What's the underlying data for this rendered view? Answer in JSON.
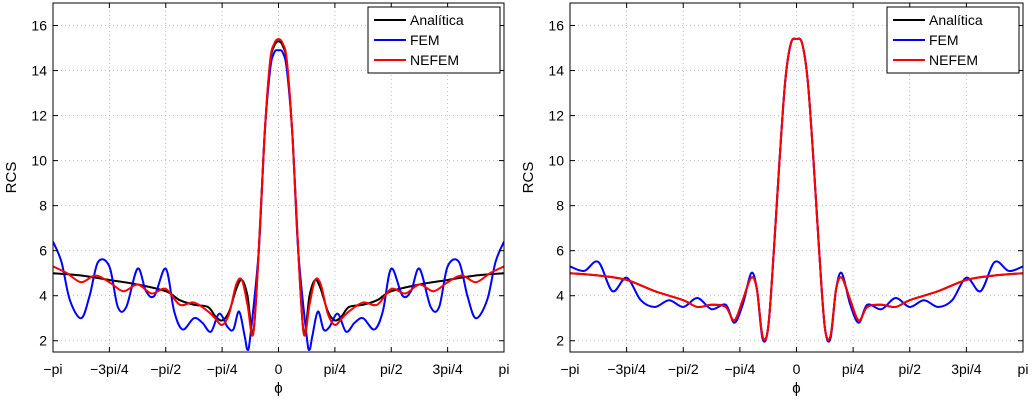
{
  "chart_data": [
    {
      "type": "line",
      "xlabel": "ϕ",
      "ylabel": "RCS",
      "xlim": [
        -3.1416,
        3.1416
      ],
      "ylim": [
        1.5,
        17
      ],
      "grid": true,
      "legend_position": "top-right",
      "xticks": [
        -3.1416,
        -2.3562,
        -1.5708,
        -0.7854,
        0,
        0.7854,
        1.5708,
        2.3562,
        3.1416
      ],
      "xtick_labels": [
        "−pi",
        "−3pi/4",
        "−pi/2",
        "−pi/4",
        "0",
        "pi/4",
        "pi/2",
        "3pi/4",
        "pi"
      ],
      "yticks": [
        2,
        4,
        6,
        8,
        10,
        12,
        14,
        16
      ],
      "ytick_labels": [
        "2",
        "4",
        "6",
        "8",
        "10",
        "12",
        "14",
        "16"
      ],
      "series": [
        {
          "name": "Analítica",
          "color": "#000000",
          "x": [
            -3.1416,
            -2.7489,
            -2.3562,
            -1.9635,
            -1.5708,
            -1.3744,
            -1.1781,
            -0.9817,
            -0.8836,
            -0.7854,
            -0.6872,
            -0.5891,
            -0.5105,
            -0.432,
            -0.3534,
            -0.2749,
            -0.1963,
            -0.1178,
            -0.0589,
            0,
            0.0589,
            0.1178,
            0.1963,
            0.2749,
            0.3534,
            0.432,
            0.5105,
            0.5891,
            0.6872,
            0.7854,
            0.8836,
            0.9817,
            1.1781,
            1.3744,
            1.5708,
            1.9635,
            2.3562,
            2.7489,
            3.1416
          ],
          "y": [
            5.0,
            4.9,
            4.7,
            4.5,
            4.2,
            3.8,
            3.6,
            3.5,
            3.1,
            2.9,
            3.3,
            4.3,
            4.7,
            4.0,
            2.3,
            6.0,
            11.0,
            14.3,
            15.1,
            15.3,
            15.1,
            14.3,
            11.0,
            6.0,
            2.3,
            4.0,
            4.7,
            4.3,
            3.3,
            2.9,
            3.1,
            3.5,
            3.6,
            3.8,
            4.2,
            4.5,
            4.7,
            4.9,
            5.0
          ]
        },
        {
          "name": "FEM",
          "color": "#0000ff",
          "x": [
            -3.1416,
            -3.0238,
            -2.906,
            -2.7489,
            -2.6311,
            -2.5133,
            -2.3562,
            -2.2384,
            -2.1206,
            -1.9635,
            -1.8457,
            -1.7279,
            -1.5708,
            -1.453,
            -1.3352,
            -1.1781,
            -1.0603,
            -0.9425,
            -0.8247,
            -0.7069,
            -0.6283,
            -0.5498,
            -0.4712,
            -0.432,
            -0.3927,
            -0.2749,
            -0.1963,
            -0.1178,
            -0.0589,
            0,
            0.0589,
            0.1178,
            0.1963,
            0.2749,
            0.3927,
            0.432,
            0.4712,
            0.5498,
            0.6283,
            0.7069,
            0.8247,
            0.9425,
            1.0603,
            1.1781,
            1.3352,
            1.453,
            1.5708,
            1.7279,
            1.8457,
            1.9635,
            2.1206,
            2.2384,
            2.3562,
            2.5133,
            2.6311,
            2.7489,
            2.906,
            3.0238,
            3.1416
          ],
          "y": [
            6.4,
            5.5,
            3.8,
            3.0,
            4.0,
            5.5,
            5.3,
            3.5,
            3.5,
            5.2,
            4.2,
            4.0,
            5.2,
            3.3,
            2.5,
            3.0,
            2.8,
            2.4,
            3.2,
            2.6,
            2.5,
            3.3,
            2.2,
            1.6,
            2.2,
            6.0,
            11.0,
            14.0,
            14.8,
            14.9,
            14.8,
            14.0,
            11.0,
            6.0,
            2.2,
            1.6,
            2.2,
            3.3,
            2.5,
            2.6,
            3.2,
            2.4,
            2.8,
            3.0,
            2.5,
            3.3,
            5.2,
            4.0,
            4.2,
            5.2,
            3.5,
            3.5,
            5.3,
            5.5,
            4.0,
            3.0,
            3.8,
            5.5,
            6.4
          ]
        },
        {
          "name": "NEFEM",
          "color": "#ff0000",
          "x": [
            -3.1416,
            -2.9453,
            -2.7489,
            -2.5525,
            -2.3562,
            -2.1598,
            -1.9635,
            -1.7671,
            -1.5708,
            -1.3744,
            -1.1781,
            -0.9817,
            -0.8836,
            -0.7854,
            -0.6872,
            -0.5891,
            -0.5105,
            -0.432,
            -0.3534,
            -0.2749,
            -0.1963,
            -0.1178,
            -0.0589,
            0,
            0.0589,
            0.1178,
            0.1963,
            0.2749,
            0.3534,
            0.432,
            0.5105,
            0.5891,
            0.6872,
            0.7854,
            0.8836,
            0.9817,
            1.1781,
            1.3744,
            1.5708,
            1.7671,
            1.9635,
            2.1598,
            2.3562,
            2.5525,
            2.7489,
            2.9453,
            3.1416
          ],
          "y": [
            5.3,
            5.0,
            4.6,
            4.9,
            4.6,
            4.2,
            4.5,
            4.1,
            4.3,
            3.6,
            3.7,
            3.3,
            3.0,
            2.7,
            3.2,
            4.5,
            4.7,
            3.6,
            2.3,
            6.0,
            11.0,
            14.4,
            15.2,
            15.4,
            15.2,
            14.4,
            11.0,
            6.0,
            2.3,
            3.6,
            4.7,
            4.5,
            3.2,
            2.7,
            3.0,
            3.3,
            3.7,
            3.6,
            4.3,
            4.1,
            4.5,
            4.2,
            4.6,
            4.9,
            4.6,
            5.0,
            5.3
          ]
        }
      ]
    },
    {
      "type": "line",
      "xlabel": "ϕ",
      "ylabel": "RCS",
      "xlim": [
        -3.1416,
        3.1416
      ],
      "ylim": [
        1.5,
        17
      ],
      "grid": true,
      "legend_position": "top-right",
      "xticks": [
        -3.1416,
        -2.3562,
        -1.5708,
        -0.7854,
        0,
        0.7854,
        1.5708,
        2.3562,
        3.1416
      ],
      "xtick_labels": [
        "−pi",
        "−3pi/4",
        "−pi/2",
        "−pi/4",
        "0",
        "pi/4",
        "pi/2",
        "3pi/4",
        "pi"
      ],
      "yticks": [
        2,
        4,
        6,
        8,
        10,
        12,
        14,
        16
      ],
      "ytick_labels": [
        "2",
        "4",
        "6",
        "8",
        "10",
        "12",
        "14",
        "16"
      ],
      "series": [
        {
          "name": "Analítica",
          "color": "#000000",
          "x": [
            -3.1416,
            -2.7489,
            -2.3562,
            -1.9635,
            -1.5708,
            -1.3744,
            -1.1781,
            -0.9817,
            -0.8639,
            -0.7461,
            -0.6283,
            -0.5498,
            -0.4712,
            -0.3927,
            -0.3142,
            -0.2356,
            -0.1571,
            -0.0785,
            0,
            0.0785,
            0.1571,
            0.2356,
            0.3142,
            0.3927,
            0.4712,
            0.5498,
            0.6283,
            0.7461,
            0.8639,
            0.9817,
            1.1781,
            1.3744,
            1.5708,
            1.9635,
            2.3562,
            2.7489,
            3.1416
          ],
          "y": [
            5.0,
            4.9,
            4.7,
            4.2,
            3.8,
            3.5,
            3.6,
            3.5,
            2.9,
            3.8,
            4.8,
            4.3,
            2.2,
            2.6,
            6.0,
            10.0,
            13.5,
            15.2,
            15.4,
            15.2,
            13.5,
            10.0,
            6.0,
            2.6,
            2.2,
            4.3,
            4.8,
            3.8,
            2.9,
            3.5,
            3.6,
            3.5,
            3.8,
            4.2,
            4.7,
            4.9,
            5.0
          ]
        },
        {
          "name": "FEM",
          "color": "#0000ff",
          "x": [
            -3.1416,
            -2.9453,
            -2.7489,
            -2.5525,
            -2.3562,
            -2.1598,
            -1.9635,
            -1.7671,
            -1.5708,
            -1.3744,
            -1.1781,
            -0.9817,
            -0.8639,
            -0.7461,
            -0.6283,
            -0.5498,
            -0.4712,
            -0.3927,
            -0.3142,
            -0.2356,
            -0.1571,
            -0.0785,
            0,
            0.0785,
            0.1571,
            0.2356,
            0.3142,
            0.3927,
            0.4712,
            0.5498,
            0.6283,
            0.7461,
            0.8639,
            0.9817,
            1.1781,
            1.3744,
            1.5708,
            1.7671,
            1.9635,
            2.1598,
            2.3562,
            2.5525,
            2.7489,
            2.9453,
            3.1416
          ],
          "y": [
            5.3,
            5.1,
            5.5,
            4.2,
            4.8,
            3.8,
            3.5,
            3.8,
            3.5,
            3.9,
            3.4,
            3.6,
            2.8,
            3.6,
            5.0,
            4.3,
            2.1,
            2.6,
            6.0,
            10.0,
            13.5,
            15.2,
            15.4,
            15.2,
            13.5,
            10.0,
            6.0,
            2.6,
            2.1,
            4.3,
            5.0,
            3.6,
            2.8,
            3.6,
            3.4,
            3.9,
            3.5,
            3.8,
            3.5,
            3.8,
            4.8,
            4.2,
            5.5,
            5.1,
            5.3
          ]
        },
        {
          "name": "NEFEM",
          "color": "#ff0000",
          "x": [
            -3.1416,
            -2.7489,
            -2.3562,
            -1.9635,
            -1.5708,
            -1.3744,
            -1.1781,
            -0.9817,
            -0.8639,
            -0.7461,
            -0.6283,
            -0.5498,
            -0.4712,
            -0.3927,
            -0.3142,
            -0.2356,
            -0.1571,
            -0.0785,
            0,
            0.0785,
            0.1571,
            0.2356,
            0.3142,
            0.3927,
            0.4712,
            0.5498,
            0.6283,
            0.7461,
            0.8639,
            0.9817,
            1.1781,
            1.3744,
            1.5708,
            1.9635,
            2.3562,
            2.7489,
            3.1416
          ],
          "y": [
            5.0,
            4.9,
            4.7,
            4.2,
            3.8,
            3.5,
            3.6,
            3.5,
            2.9,
            3.8,
            4.8,
            4.3,
            2.2,
            2.6,
            6.0,
            10.0,
            13.5,
            15.2,
            15.4,
            15.2,
            13.5,
            10.0,
            6.0,
            2.6,
            2.2,
            4.3,
            4.8,
            3.8,
            2.9,
            3.5,
            3.6,
            3.5,
            3.8,
            4.2,
            4.7,
            4.9,
            5.0
          ]
        }
      ]
    }
  ]
}
